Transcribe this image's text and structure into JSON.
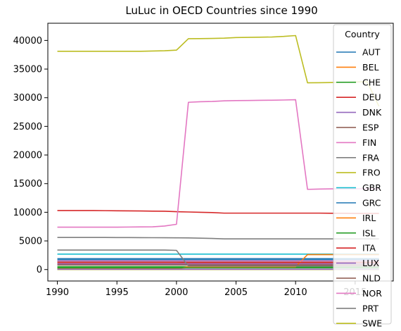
{
  "chart_data": {
    "type": "line",
    "title": "LuLuc in OECD Countries since 1990",
    "xlabel": "",
    "ylabel": "",
    "xlim": [
      1989.2,
      2018.2
    ],
    "ylim": [
      -2000,
      43000
    ],
    "x_ticks": [
      1990,
      1995,
      2000,
      2005,
      2010,
      2015
    ],
    "y_ticks": [
      0,
      5000,
      10000,
      15000,
      20000,
      25000,
      30000,
      35000,
      40000
    ],
    "grid": false,
    "legend": {
      "title": "Country",
      "placement": "top-right"
    },
    "x": [
      1990,
      1991,
      1992,
      1993,
      1994,
      1995,
      1996,
      1997,
      1998,
      1999,
      2000,
      2001,
      2002,
      2003,
      2004,
      2005,
      2006,
      2007,
      2008,
      2009,
      2010,
      2011,
      2012,
      2013,
      2014,
      2015,
      2016,
      2017
    ],
    "series": [
      {
        "name": "AUT",
        "color": "#1f77b4",
        "values": [
          1900,
          1900,
          1900,
          1900,
          1900,
          1900,
          1900,
          1900,
          1900,
          1900,
          1900,
          1900,
          1900,
          1900,
          1900,
          1900,
          1900,
          1900,
          1900,
          1900,
          1900,
          1900,
          1900,
          1900,
          1900,
          1900,
          1900,
          1900
        ]
      },
      {
        "name": "BEL",
        "color": "#ff7f0e",
        "values": [
          200,
          200,
          200,
          200,
          200,
          200,
          200,
          200,
          200,
          200,
          200,
          350,
          350,
          350,
          350,
          350,
          350,
          350,
          350,
          350,
          350,
          350,
          350,
          350,
          350,
          350,
          350,
          350
        ]
      },
      {
        "name": "CHE",
        "color": "#2ca02c",
        "values": [
          500,
          500,
          500,
          500,
          500,
          500,
          500,
          500,
          500,
          500,
          500,
          500,
          500,
          500,
          500,
          500,
          500,
          500,
          500,
          500,
          500,
          500,
          500,
          500,
          500,
          500,
          500,
          500
        ]
      },
      {
        "name": "DEU",
        "color": "#d62728",
        "values": [
          10300,
          10300,
          10300,
          10300,
          10280,
          10260,
          10240,
          10220,
          10200,
          10180,
          10100,
          10050,
          10000,
          9950,
          9850,
          9850,
          9850,
          9850,
          9850,
          9850,
          9850,
          9850,
          9850,
          9830,
          9820,
          9800,
          9800,
          9800
        ]
      },
      {
        "name": "DNK",
        "color": "#9467bd",
        "values": [
          1000,
          1000,
          1000,
          1000,
          1000,
          1000,
          1000,
          1000,
          1000,
          1000,
          1000,
          1000,
          1000,
          1000,
          1000,
          1000,
          1000,
          1000,
          1000,
          1000,
          1000,
          1000,
          1000,
          1000,
          1000,
          1000,
          1000,
          1000
        ]
      },
      {
        "name": "ESP",
        "color": "#8c564b",
        "values": [
          1400,
          1400,
          1400,
          1400,
          1400,
          1400,
          1400,
          1400,
          1400,
          1400,
          1400,
          1300,
          1300,
          1300,
          1300,
          1300,
          1300,
          1300,
          1300,
          1300,
          1300,
          1300,
          1300,
          1300,
          1300,
          1300,
          1300,
          1300
        ]
      },
      {
        "name": "FIN",
        "color": "#e377c2",
        "values": [
          7400,
          7400,
          7400,
          7400,
          7400,
          7400,
          7420,
          7440,
          7460,
          7600,
          7900,
          29200,
          29300,
          29350,
          29450,
          29500,
          29520,
          29540,
          29560,
          29600,
          29650,
          14000,
          14050,
          14080,
          14100,
          14100,
          14100,
          14100
        ]
      },
      {
        "name": "FRA",
        "color": "#7f7f7f",
        "values": [
          5600,
          5600,
          5600,
          5600,
          5600,
          5590,
          5580,
          5570,
          5560,
          5550,
          5540,
          5520,
          5480,
          5430,
          5350,
          5350,
          5350,
          5350,
          5350,
          5350,
          5350,
          5350,
          5350,
          5350,
          5350,
          5350,
          5350,
          5350
        ]
      },
      {
        "name": "FRO",
        "color": "#bcbd22",
        "values": [
          0,
          0,
          0,
          0,
          0,
          0,
          0,
          0,
          0,
          0,
          0,
          0,
          0,
          0,
          0,
          0,
          0,
          0,
          0,
          0,
          0,
          0,
          0,
          0,
          0,
          0,
          0,
          0
        ]
      },
      {
        "name": "GBR",
        "color": "#17becf",
        "values": [
          2700,
          2700,
          2700,
          2700,
          2700,
          2700,
          2700,
          2700,
          2700,
          2700,
          2700,
          2700,
          2700,
          2700,
          2700,
          2700,
          2700,
          2700,
          2700,
          2700,
          2700,
          2700,
          2700,
          2700,
          2700,
          2700,
          2700,
          2700
        ]
      },
      {
        "name": "GRC",
        "color": "#1f77b4",
        "values": [
          1700,
          1700,
          1700,
          1700,
          1700,
          1700,
          1700,
          1700,
          1700,
          1700,
          1700,
          1700,
          1700,
          1700,
          1700,
          1700,
          1700,
          1700,
          1700,
          1700,
          1700,
          1700,
          1700,
          1700,
          1700,
          1700,
          1700,
          1700
        ]
      },
      {
        "name": "IRL",
        "color": "#ff7f0e",
        "values": [
          100,
          100,
          100,
          100,
          100,
          100,
          100,
          100,
          100,
          100,
          100,
          500,
          500,
          500,
          500,
          500,
          500,
          500,
          500,
          500,
          500,
          2600,
          2600,
          2600,
          2600,
          2600,
          2600,
          2600
        ]
      },
      {
        "name": "ISL",
        "color": "#2ca02c",
        "values": [
          300,
          300,
          300,
          300,
          300,
          300,
          300,
          300,
          300,
          300,
          300,
          300,
          300,
          300,
          300,
          300,
          300,
          300,
          300,
          300,
          300,
          300,
          300,
          300,
          300,
          300,
          300,
          300
        ]
      },
      {
        "name": "ITA",
        "color": "#d62728",
        "values": [
          1200,
          1200,
          1200,
          1200,
          1200,
          1200,
          1200,
          1200,
          1200,
          1200,
          1200,
          1200,
          1200,
          1200,
          1200,
          1200,
          1200,
          1200,
          1200,
          1200,
          1200,
          1200,
          1200,
          1200,
          1200,
          1200,
          1200,
          1200
        ]
      },
      {
        "name": "LUX",
        "color": "#9467bd",
        "values": [
          50,
          50,
          50,
          50,
          50,
          50,
          50,
          50,
          50,
          50,
          50,
          50,
          50,
          50,
          50,
          50,
          50,
          50,
          50,
          50,
          50,
          50,
          50,
          50,
          50,
          50,
          50,
          50
        ]
      },
      {
        "name": "NLD",
        "color": "#8c564b",
        "values": [
          800,
          800,
          800,
          800,
          800,
          800,
          800,
          800,
          800,
          800,
          800,
          800,
          800,
          800,
          800,
          800,
          800,
          800,
          800,
          800,
          800,
          800,
          800,
          800,
          800,
          800,
          800,
          800
        ]
      },
      {
        "name": "NOR",
        "color": "#e377c2",
        "values": [
          1500,
          1500,
          1500,
          1500,
          1500,
          1500,
          1500,
          1500,
          1500,
          1500,
          1500,
          1500,
          1500,
          1500,
          1500,
          1500,
          1500,
          1500,
          1500,
          1500,
          1500,
          1500,
          1500,
          1500,
          1500,
          1500,
          1500,
          1500
        ]
      },
      {
        "name": "PRT",
        "color": "#7f7f7f",
        "values": [
          3400,
          3400,
          3400,
          3400,
          3400,
          3400,
          3400,
          3400,
          3400,
          3400,
          3350,
          600,
          600,
          600,
          600,
          600,
          600,
          600,
          600,
          600,
          600,
          600,
          600,
          600,
          600,
          600,
          600,
          600
        ]
      },
      {
        "name": "SWE",
        "color": "#bcbd22",
        "values": [
          38100,
          38100,
          38100,
          38100,
          38100,
          38100,
          38100,
          38100,
          38150,
          38200,
          38300,
          40300,
          40320,
          40350,
          40400,
          40500,
          40530,
          40560,
          40600,
          40700,
          40850,
          32600,
          32620,
          32650,
          32700,
          32750,
          32800,
          28500
        ]
      }
    ]
  }
}
